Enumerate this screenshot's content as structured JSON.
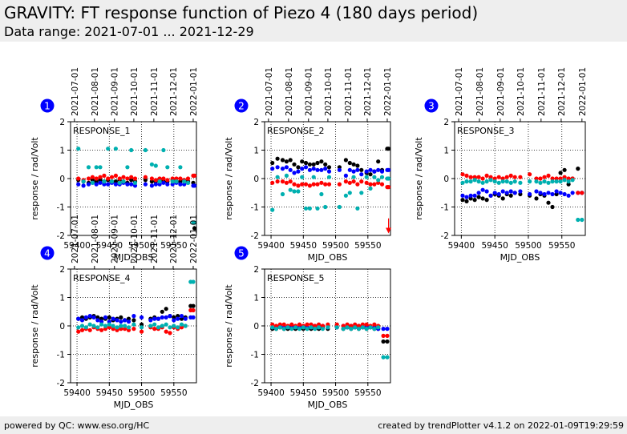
{
  "header": {
    "title": "GRAVITY: FT response function of Piezo 4 (180 days period)",
    "subtitle": "Data range: 2021-07-01 ... 2021-12-29"
  },
  "footer": {
    "left": "powered by QC: www.eso.org/HC",
    "right": "created by trendPlotter v4.1.2 on 2022-01-09T19:29:59"
  },
  "colors": {
    "black": "#000000",
    "blue": "#0000ff",
    "red": "#ff0000",
    "cyan": "#00b0b0",
    "badge": "#0000ff",
    "grid": "#000000"
  },
  "chart_data": [
    {
      "type": "scatter",
      "panel": "1",
      "label": "RESPONSE_1",
      "xlabel": "MJD_OBS",
      "ylabel": "response / rad/Volt",
      "xlim": [
        59390,
        59585
      ],
      "ylim": [
        -2,
        2
      ],
      "xticks": [
        59400,
        59450,
        59500,
        59550
      ],
      "yticks": [
        -2,
        -1,
        0,
        1,
        2
      ],
      "date_ticks": [
        "2021-07-01",
        "2021-08-01",
        "2021-09-01",
        "2021-10-01",
        "2021-11-01",
        "2021-12-01",
        "2022-01-01"
      ],
      "x": [
        59402,
        59410,
        59418,
        59424,
        59430,
        59436,
        59442,
        59448,
        59454,
        59460,
        59466,
        59472,
        59478,
        59484,
        59490,
        59506,
        59516,
        59522,
        59528,
        59534,
        59540,
        59548,
        59554,
        59560,
        59566,
        59572,
        59580,
        59582
      ],
      "series": [
        {
          "color": "black",
          "values": [
            -0.05,
            -0.1,
            -0.15,
            -0.05,
            -0.1,
            -0.05,
            -0.1,
            -0.05,
            -0.1,
            -0.1,
            -0.05,
            -0.1,
            -0.15,
            -0.05,
            -0.1,
            -0.05,
            -0.1,
            -0.1,
            -0.05,
            -0.1,
            -0.1,
            -0.05,
            -0.1,
            -0.1,
            -0.05,
            -0.1,
            -0.15,
            -1.75
          ]
        },
        {
          "color": "blue",
          "values": [
            -0.2,
            -0.25,
            -0.2,
            -0.15,
            -0.2,
            -0.15,
            -0.2,
            -0.2,
            -0.15,
            -0.2,
            -0.2,
            -0.15,
            -0.2,
            -0.2,
            -0.25,
            -0.2,
            -0.25,
            -0.2,
            -0.2,
            -0.15,
            -0.2,
            -0.2,
            -0.15,
            -0.2,
            -0.2,
            -0.15,
            -0.25,
            -0.25
          ]
        },
        {
          "color": "red",
          "values": [
            0.0,
            -0.05,
            0.0,
            0.05,
            0.0,
            0.05,
            0.1,
            0.0,
            0.05,
            0.1,
            0.0,
            0.05,
            0.0,
            0.05,
            0.0,
            0.05,
            0.0,
            -0.05,
            0.0,
            0.0,
            -0.05,
            0.0,
            0.0,
            0.0,
            -0.05,
            0.0,
            0.1,
            0.1
          ]
        },
        {
          "color": "cyan",
          "values": [
            1.05,
            -0.1,
            0.4,
            -0.15,
            0.4,
            0.4,
            -0.1,
            1.05,
            -0.1,
            1.05,
            -0.15,
            -0.1,
            0.4,
            1.0,
            -0.15,
            1.0,
            0.5,
            0.45,
            -0.1,
            1.0,
            0.4,
            -0.1,
            -0.1,
            0.4,
            -0.1,
            -0.15,
            -1.55,
            -1.55
          ]
        }
      ],
      "annotations": []
    },
    {
      "type": "scatter",
      "panel": "2",
      "label": "RESPONSE_2",
      "xlabel": "MJD_OBS",
      "ylabel": "response / rad/Volt",
      "xlim": [
        59390,
        59585
      ],
      "ylim": [
        -2,
        2
      ],
      "xticks": [
        59400,
        59450,
        59500,
        59550
      ],
      "yticks": [
        -2,
        -1,
        0,
        1,
        2
      ],
      "date_ticks": [
        "2021-07-01",
        "2021-08-01",
        "2021-09-01",
        "2021-10-01",
        "2021-11-01",
        "2021-12-01",
        "2022-01-01"
      ],
      "x": [
        59402,
        59410,
        59418,
        59424,
        59430,
        59436,
        59442,
        59448,
        59454,
        59460,
        59466,
        59472,
        59478,
        59484,
        59490,
        59506,
        59516,
        59522,
        59528,
        59534,
        59540,
        59548,
        59554,
        59560,
        59566,
        59572,
        59580,
        59582
      ],
      "series": [
        {
          "color": "black",
          "values": [
            0.55,
            0.7,
            0.65,
            0.6,
            0.65,
            0.5,
            0.4,
            0.6,
            0.55,
            0.5,
            0.5,
            0.55,
            0.6,
            0.5,
            0.4,
            0.4,
            0.65,
            0.55,
            0.5,
            0.45,
            0.3,
            0.2,
            0.15,
            0.25,
            0.6,
            0.3,
            1.05,
            1.05
          ]
        },
        {
          "color": "blue",
          "values": [
            0.35,
            0.4,
            0.35,
            0.4,
            0.3,
            0.2,
            0.25,
            0.35,
            0.4,
            0.3,
            0.35,
            0.3,
            0.3,
            0.35,
            0.25,
            0.3,
            0.1,
            0.3,
            0.25,
            0.3,
            0.15,
            0.25,
            0.3,
            0.25,
            0.3,
            0.25,
            0.3,
            0.3
          ]
        },
        {
          "color": "red",
          "values": [
            -0.15,
            -0.1,
            -0.1,
            -0.15,
            -0.1,
            -0.2,
            -0.25,
            -0.2,
            -0.2,
            -0.25,
            -0.2,
            -0.2,
            -0.15,
            -0.2,
            -0.2,
            -0.2,
            -0.1,
            -0.15,
            -0.1,
            -0.2,
            -0.1,
            -0.15,
            -0.2,
            -0.2,
            -0.15,
            -0.2,
            -0.3,
            -0.3
          ]
        },
        {
          "color": "cyan",
          "values": [
            -1.1,
            0.05,
            -0.55,
            0.1,
            -0.4,
            -0.45,
            -0.45,
            0.05,
            -1.05,
            -1.05,
            0.05,
            -1.05,
            -0.55,
            -1.0,
            0.05,
            -1.0,
            -0.6,
            -0.5,
            0.05,
            -1.05,
            -0.5,
            0.05,
            -0.35,
            0.05,
            -0.05,
            0.05,
            0.0,
            0.0
          ]
        }
      ],
      "annotations": [
        {
          "type": "arrow",
          "x": 59582,
          "from": -1.4,
          "to": -1.9,
          "color": "red"
        }
      ]
    },
    {
      "type": "scatter",
      "panel": "3",
      "label": "RESPONSE_3",
      "xlabel": "MJD_OBS",
      "ylabel": "response / rad/Volt",
      "xlim": [
        59390,
        59585
      ],
      "ylim": [
        -2,
        2
      ],
      "xticks": [
        59400,
        59450,
        59500,
        59550
      ],
      "yticks": [
        -2,
        -1,
        0,
        1,
        2
      ],
      "date_ticks": [
        "2021-07-01",
        "2021-08-01",
        "2021-09-01",
        "2021-10-01",
        "2021-11-01",
        "2021-12-01",
        "2022-01-01"
      ],
      "x": [
        59402,
        59408,
        59414,
        59420,
        59426,
        59432,
        59438,
        59444,
        59450,
        59456,
        59462,
        59468,
        59474,
        59480,
        59488,
        59502,
        59512,
        59518,
        59524,
        59530,
        59536,
        59542,
        59548,
        59554,
        59560,
        59566,
        59574,
        59580
      ],
      "series": [
        {
          "color": "black",
          "values": [
            -0.75,
            -0.8,
            -0.7,
            -0.75,
            -0.65,
            -0.7,
            -0.75,
            -0.6,
            -0.55,
            -0.6,
            -0.7,
            -0.55,
            -0.6,
            -0.5,
            -0.55,
            -0.6,
            -0.7,
            -0.55,
            -0.6,
            -0.85,
            -1.0,
            -0.55,
            0.2,
            0.3,
            -0.2,
            0.0,
            0.35,
            -0.5
          ]
        },
        {
          "color": "blue",
          "values": [
            -0.6,
            -0.65,
            -0.6,
            -0.6,
            -0.5,
            -0.4,
            -0.45,
            -0.6,
            -0.5,
            -0.55,
            -0.45,
            -0.5,
            -0.45,
            -0.5,
            -0.45,
            -0.55,
            -0.45,
            -0.5,
            -0.55,
            -0.5,
            -0.55,
            -0.45,
            -0.5,
            -0.55,
            -0.6,
            -0.5,
            -0.5,
            -0.5
          ]
        },
        {
          "color": "red",
          "values": [
            0.15,
            0.1,
            0.05,
            0.05,
            0.05,
            0.0,
            0.1,
            0.05,
            0.0,
            0.05,
            0.0,
            0.05,
            0.1,
            0.05,
            0.05,
            0.15,
            0.0,
            0.0,
            0.05,
            0.1,
            0.0,
            0.0,
            0.0,
            0.05,
            0.0,
            0.0,
            -0.5,
            -0.5
          ]
        },
        {
          "color": "cyan",
          "values": [
            -0.15,
            -0.1,
            -0.1,
            -0.05,
            -0.1,
            -0.15,
            -0.1,
            -0.05,
            -0.1,
            -0.15,
            -0.1,
            -0.1,
            -0.15,
            -0.1,
            -0.15,
            -0.1,
            -0.1,
            -0.15,
            -0.1,
            -0.15,
            -0.1,
            -0.1,
            -0.1,
            -0.05,
            -0.1,
            -0.05,
            -1.45,
            -1.45
          ]
        }
      ],
      "annotations": []
    },
    {
      "type": "scatter",
      "panel": "4",
      "label": "RESPONSE_4",
      "xlabel": "MJD_OBS",
      "ylabel": "response / rad/Volt",
      "xlim": [
        59390,
        59585
      ],
      "ylim": [
        -2,
        2
      ],
      "xticks": [
        59400,
        59450,
        59500,
        59550
      ],
      "yticks": [
        -2,
        -1,
        0,
        1,
        2
      ],
      "date_ticks": [
        "2021-07-01",
        "2021-08-01",
        "2021-09-01",
        "2021-10-01",
        "2021-11-01",
        "2021-12-01",
        "2022-01-01"
      ],
      "x": [
        59402,
        59408,
        59414,
        59420,
        59426,
        59432,
        59438,
        59444,
        59450,
        59456,
        59462,
        59468,
        59474,
        59480,
        59488,
        59500,
        59514,
        59520,
        59526,
        59532,
        59538,
        59544,
        59550,
        59556,
        59562,
        59568,
        59576,
        59580
      ],
      "series": [
        {
          "color": "black",
          "values": [
            0.25,
            0.3,
            0.25,
            0.3,
            0.35,
            0.3,
            0.25,
            0.25,
            0.3,
            0.2,
            0.25,
            0.3,
            0.2,
            0.25,
            0.2,
            0.05,
            0.25,
            0.3,
            0.25,
            0.5,
            0.6,
            0.35,
            0.3,
            0.35,
            0.25,
            0.3,
            0.7,
            0.7
          ]
        },
        {
          "color": "blue",
          "values": [
            0.25,
            0.2,
            0.3,
            0.35,
            0.3,
            0.2,
            0.15,
            0.3,
            0.15,
            0.25,
            0.2,
            0.15,
            0.2,
            0.15,
            0.35,
            0.3,
            0.2,
            0.25,
            0.25,
            0.3,
            0.3,
            0.35,
            0.2,
            0.25,
            0.35,
            0.25,
            0.3,
            0.3
          ]
        },
        {
          "color": "red",
          "values": [
            -0.2,
            -0.15,
            -0.1,
            -0.15,
            -0.05,
            -0.1,
            -0.15,
            -0.1,
            -0.05,
            -0.1,
            -0.15,
            -0.1,
            -0.1,
            -0.15,
            -0.1,
            -0.2,
            -0.05,
            -0.1,
            -0.1,
            -0.05,
            -0.2,
            -0.25,
            -0.05,
            -0.1,
            -0.05,
            0.0,
            0.55,
            0.55
          ]
        },
        {
          "color": "cyan",
          "values": [
            -0.05,
            0.0,
            -0.05,
            0.05,
            0.0,
            -0.05,
            0.05,
            0.0,
            0.05,
            0.0,
            -0.05,
            0.0,
            0.0,
            -0.05,
            0.05,
            -0.05,
            0.0,
            0.05,
            -0.05,
            0.0,
            0.05,
            -0.05,
            0.0,
            -0.05,
            0.05,
            0.0,
            1.55,
            1.55
          ]
        }
      ],
      "annotations": []
    },
    {
      "type": "scatter",
      "panel": "5",
      "label": "RESPONSE_5",
      "xlabel": "MJD_OBS",
      "ylabel": "response / rad/Volt",
      "xlim": [
        59390,
        59585
      ],
      "ylim": [
        -2,
        2
      ],
      "xticks": [
        59400,
        59450,
        59500,
        59550
      ],
      "yticks": [
        -2,
        -1,
        0,
        1,
        2
      ],
      "date_ticks": [],
      "x": [
        59402,
        59408,
        59414,
        59420,
        59426,
        59432,
        59438,
        59444,
        59450,
        59456,
        59462,
        59468,
        59474,
        59480,
        59488,
        59502,
        59512,
        59518,
        59524,
        59530,
        59536,
        59542,
        59548,
        59554,
        59560,
        59566,
        59574,
        59580
      ],
      "series": [
        {
          "color": "black",
          "values": [
            -0.1,
            -0.1,
            -0.05,
            -0.1,
            -0.1,
            -0.05,
            -0.1,
            -0.05,
            -0.1,
            -0.05,
            -0.1,
            -0.05,
            -0.1,
            -0.05,
            -0.1,
            -0.05,
            -0.1,
            -0.05,
            -0.1,
            -0.05,
            -0.1,
            -0.05,
            -0.1,
            -0.05,
            -0.1,
            -0.1,
            -0.55,
            -0.55
          ]
        },
        {
          "color": "blue",
          "values": [
            -0.05,
            -0.05,
            0.0,
            -0.05,
            -0.05,
            0.0,
            -0.05,
            -0.05,
            0.0,
            -0.05,
            -0.05,
            0.0,
            -0.05,
            0.0,
            -0.05,
            -0.05,
            0.0,
            -0.05,
            0.0,
            -0.05,
            0.0,
            -0.05,
            0.0,
            -0.05,
            -0.05,
            -0.1,
            -0.1,
            -0.1
          ]
        },
        {
          "color": "red",
          "values": [
            0.05,
            0.0,
            0.05,
            0.05,
            0.0,
            0.05,
            0.0,
            0.05,
            0.0,
            0.05,
            0.05,
            0.0,
            0.05,
            0.0,
            0.05,
            0.05,
            0.0,
            0.05,
            0.0,
            0.05,
            0.0,
            0.05,
            0.05,
            0.0,
            0.05,
            0.0,
            -0.35,
            -0.35
          ]
        },
        {
          "color": "cyan",
          "values": [
            -0.05,
            -0.1,
            -0.05,
            -0.1,
            -0.05,
            -0.1,
            -0.05,
            -0.1,
            -0.05,
            -0.1,
            -0.05,
            -0.1,
            -0.05,
            -0.1,
            -0.05,
            -0.05,
            -0.1,
            -0.05,
            -0.1,
            -0.05,
            -0.1,
            -0.05,
            -0.1,
            -0.05,
            -0.1,
            -0.05,
            -1.1,
            -1.1
          ]
        }
      ],
      "annotations": []
    }
  ]
}
